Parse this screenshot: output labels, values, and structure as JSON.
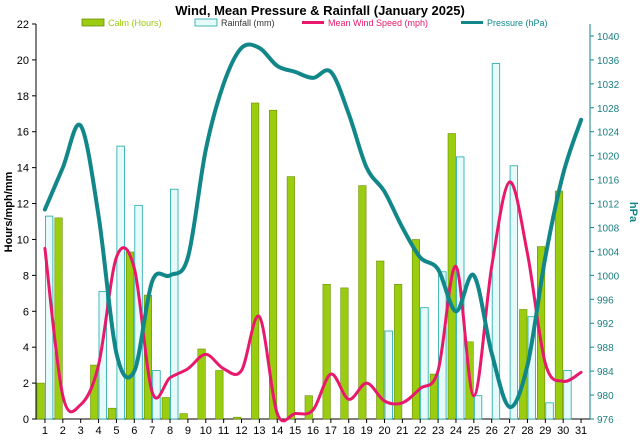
{
  "chart_data": {
    "type": "bar",
    "title": "Wind, Mean Pressure & Rainfall (January 2025)",
    "ylabel": "Hours/mph/mm",
    "y2label": "hPa",
    "ylim": [
      0,
      22
    ],
    "y2lim": [
      976,
      1042
    ],
    "yticks": [
      0,
      2,
      4,
      6,
      8,
      10,
      12,
      14,
      16,
      18,
      20,
      22
    ],
    "y2ticks": [
      976,
      980,
      984,
      988,
      992,
      996,
      1000,
      1004,
      1008,
      1012,
      1016,
      1020,
      1024,
      1028,
      1032,
      1036,
      1040
    ],
    "categories": [
      "1",
      "2",
      "3",
      "4",
      "5",
      "6",
      "7",
      "8",
      "9",
      "10",
      "11",
      "12",
      "13",
      "14",
      "15",
      "16",
      "17",
      "18",
      "19",
      "20",
      "21",
      "22",
      "23",
      "24",
      "25",
      "26",
      "27",
      "28",
      "29",
      "30",
      "31"
    ],
    "legend_position": "top",
    "grid": false,
    "series": [
      {
        "name": "Calm (Hours)",
        "kind": "bar",
        "axis": "left",
        "color": "#9acd0f",
        "values": [
          2.0,
          11.2,
          0.0,
          3.0,
          0.6,
          9.3,
          6.9,
          1.2,
          0.3,
          3.9,
          2.7,
          0.1,
          17.6,
          17.2,
          13.5,
          1.3,
          7.5,
          7.3,
          13.0,
          8.8,
          7.5,
          10.0,
          2.5,
          15.9,
          4.3,
          0.0,
          0.0,
          6.1,
          9.6,
          12.7,
          0.0
        ]
      },
      {
        "name": "Rainfall (mm)",
        "kind": "bar",
        "axis": "left",
        "color": "#e6fafa",
        "stroke": "#1aa8a8",
        "values": [
          11.3,
          0.0,
          0.0,
          7.1,
          15.2,
          11.9,
          2.7,
          12.8,
          0.0,
          0.0,
          0.0,
          0.0,
          0.0,
          0.0,
          0.0,
          0.0,
          0.0,
          0.0,
          0.0,
          4.9,
          0.0,
          6.2,
          8.2,
          14.6,
          1.3,
          19.8,
          14.1,
          5.7,
          0.9,
          2.7,
          0.0
        ]
      },
      {
        "name": "Mean Wind Speed (mph)",
        "kind": "line",
        "axis": "left",
        "color": "#e8196b",
        "values": [
          9.5,
          1.3,
          0.8,
          3.0,
          9.0,
          8.4,
          1.5,
          2.3,
          2.8,
          3.6,
          2.8,
          2.7,
          5.7,
          0.3,
          0.3,
          0.5,
          2.5,
          1.1,
          2.0,
          1.0,
          0.9,
          1.7,
          2.7,
          8.5,
          1.3,
          8.5,
          13.2,
          9.2,
          3.1,
          2.1,
          2.6
        ]
      },
      {
        "name": "Pressure (hPa)",
        "kind": "line",
        "axis": "right",
        "color": "#12878a",
        "values": [
          1011,
          1018,
          1025,
          1010,
          987,
          984,
          999,
          1000,
          1003,
          1021,
          1032,
          1038,
          1038,
          1035,
          1034,
          1033,
          1034,
          1027,
          1018,
          1014,
          1008,
          1003,
          1001,
          994,
          1000,
          987,
          978,
          985,
          1003,
          1017,
          1026
        ]
      }
    ]
  }
}
